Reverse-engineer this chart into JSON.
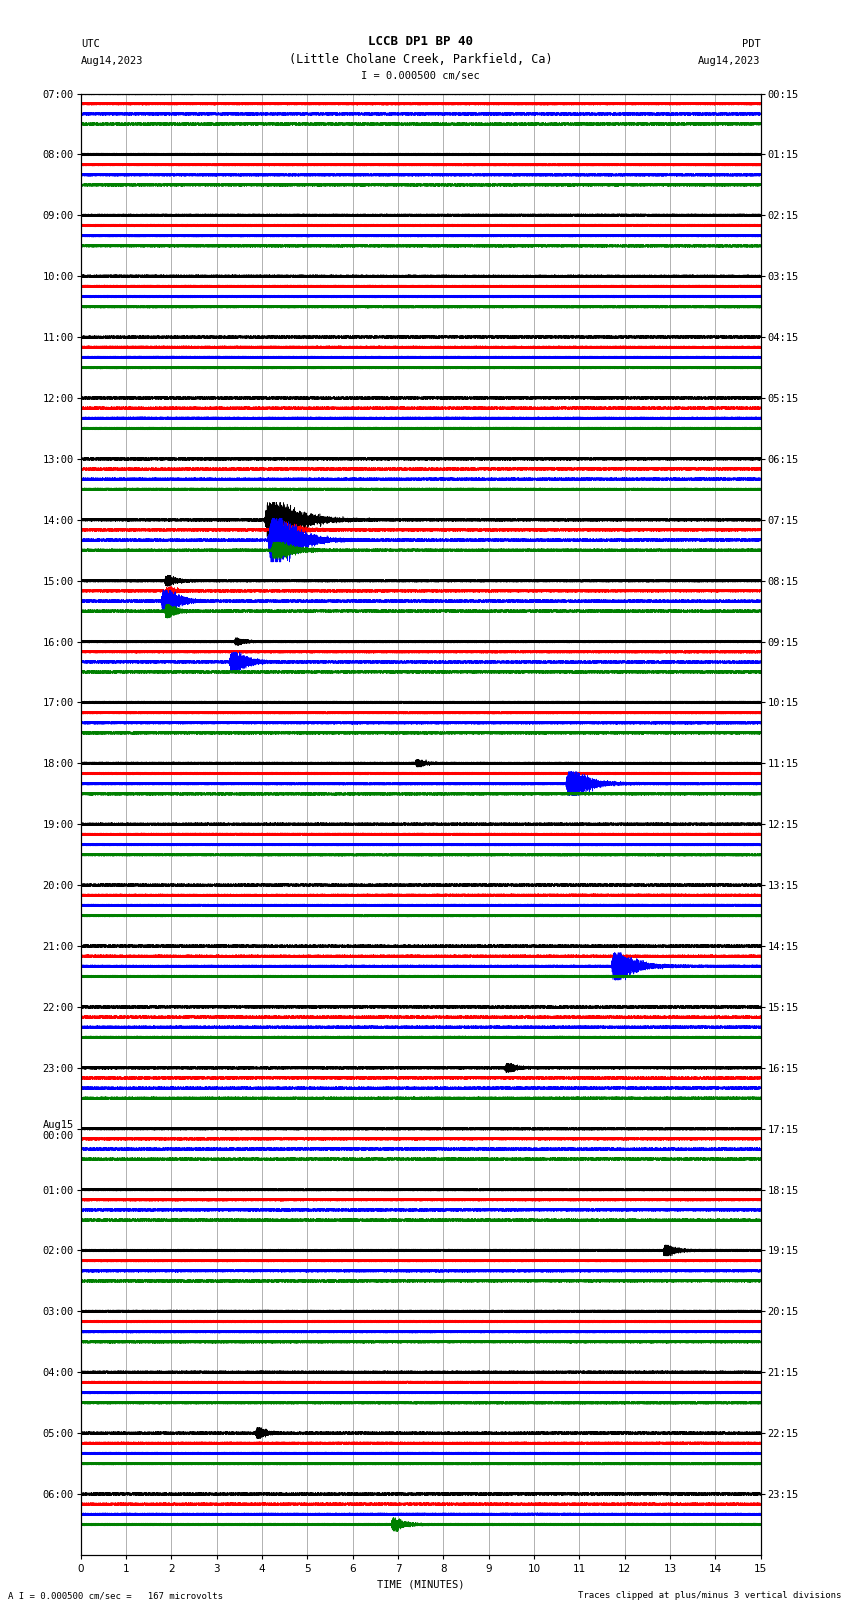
{
  "title_line1": "LCCB DP1 BP 40",
  "title_line2": "(Little Cholane Creek, Parkfield, Ca)",
  "scale_text": "I = 0.000500 cm/sec",
  "left_label": "UTC",
  "left_date": "Aug14,2023",
  "right_label": "PDT",
  "right_date": "Aug14,2023",
  "xlabel": "TIME (MINUTES)",
  "bottom_left": "A I = 0.000500 cm/sec =   167 microvolts",
  "bottom_right": "Traces clipped at plus/minus 3 vertical divisions",
  "xlim": [
    0,
    15
  ],
  "left_times": [
    "07:00",
    "08:00",
    "09:00",
    "10:00",
    "11:00",
    "12:00",
    "13:00",
    "14:00",
    "15:00",
    "16:00",
    "17:00",
    "18:00",
    "19:00",
    "20:00",
    "21:00",
    "22:00",
    "23:00",
    "Aug15\n00:00",
    "01:00",
    "02:00",
    "03:00",
    "04:00",
    "05:00",
    "06:00"
  ],
  "right_times": [
    "00:15",
    "01:15",
    "02:15",
    "03:15",
    "04:15",
    "05:15",
    "06:15",
    "07:15",
    "08:15",
    "09:15",
    "10:15",
    "11:15",
    "12:15",
    "13:15",
    "14:15",
    "15:15",
    "16:15",
    "17:15",
    "18:15",
    "19:15",
    "20:15",
    "21:15",
    "22:15",
    "23:15"
  ],
  "n_rows": 24,
  "traces_per_row": 4,
  "trace_colors": [
    "black",
    "red",
    "blue",
    "green"
  ],
  "bg_color": "white",
  "fig_width": 8.5,
  "fig_height": 16.13,
  "dpi": 100,
  "font_size_title": 9,
  "font_size_axis": 7.5,
  "font_size_ticks": 7.5,
  "font_size_bottom": 6.5,
  "grid_color": "#888888"
}
